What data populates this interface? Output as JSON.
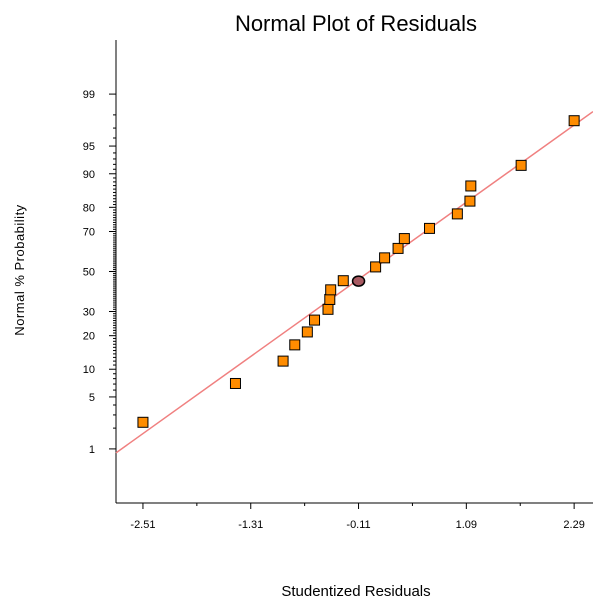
{
  "chart_data": {
    "type": "scatter",
    "title": "Normal Plot of Residuals",
    "xlabel": "Studentized Residuals",
    "ylabel": "Normal % Probability",
    "x_ticks": [
      "-2.51",
      "-1.31",
      "-0.11",
      "1.09",
      "2.29"
    ],
    "x_tick_values": [
      -2.51,
      -1.31,
      -0.11,
      1.09,
      2.29
    ],
    "y_ticks": [
      "1",
      "5",
      "10",
      "20",
      "30",
      "50",
      "70",
      "80",
      "90",
      "95",
      "99"
    ],
    "y_tick_values": [
      1,
      5,
      10,
      20,
      30,
      50,
      70,
      80,
      90,
      95,
      99
    ],
    "xlim": [
      -2.81,
      2.5
    ],
    "ylim": [
      0.12,
      99.88
    ],
    "y_scale": "normal-probability",
    "points": [
      {
        "x": -2.51,
        "y": 2.4
      },
      {
        "x": -1.48,
        "y": 7.1
      },
      {
        "x": -0.95,
        "y": 12.0
      },
      {
        "x": -0.82,
        "y": 16.8
      },
      {
        "x": -0.68,
        "y": 21.4
      },
      {
        "x": -0.6,
        "y": 26.2
      },
      {
        "x": -0.45,
        "y": 31.0
      },
      {
        "x": -0.43,
        "y": 35.7
      },
      {
        "x": -0.42,
        "y": 40.5
      },
      {
        "x": -0.28,
        "y": 45.2
      },
      {
        "x": -0.11,
        "y": 45.0,
        "highlight": true
      },
      {
        "x": 0.08,
        "y": 52.4
      },
      {
        "x": 0.18,
        "y": 57.1
      },
      {
        "x": 0.33,
        "y": 61.9
      },
      {
        "x": 0.4,
        "y": 66.7
      },
      {
        "x": 0.68,
        "y": 71.4
      },
      {
        "x": 0.99,
        "y": 77.5
      },
      {
        "x": 1.13,
        "y": 82.2
      },
      {
        "x": 1.14,
        "y": 86.9
      },
      {
        "x": 1.7,
        "y": 91.8
      },
      {
        "x": 2.29,
        "y": 97.6
      }
    ],
    "fit_line": {
      "x": [
        -2.81,
        2.5
      ],
      "y": [
        0.87,
        98.2
      ]
    },
    "colors": {
      "marker": "#ff8c00",
      "marker_edge": "#000000",
      "highlight": "#a85a62",
      "fit_line": "#f08080",
      "axes": "#000000"
    }
  }
}
